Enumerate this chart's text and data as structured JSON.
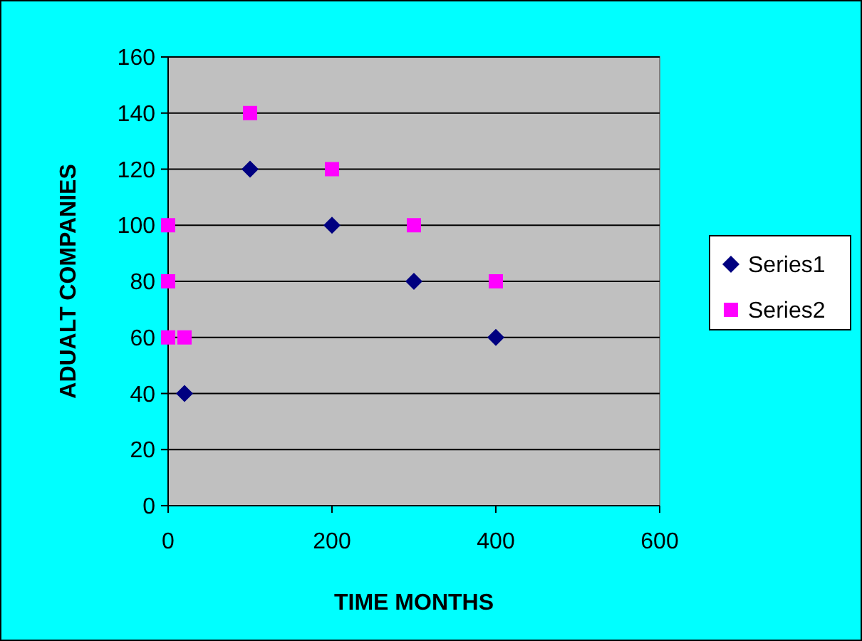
{
  "chart_data": {
    "type": "scatter",
    "xlabel": "TIME MONTHS",
    "ylabel": "ADUALT COMPANIES",
    "xlim": [
      0,
      600
    ],
    "xticks": [
      0,
      200,
      400,
      600
    ],
    "ylim": [
      0,
      160
    ],
    "yticks": [
      0,
      20,
      40,
      60,
      80,
      100,
      120,
      140,
      160
    ],
    "grid": "y",
    "legend": "right",
    "series": [
      {
        "name": "Series1",
        "color": "#000080",
        "marker": "diamond",
        "x": [
          20,
          100,
          200,
          300,
          400
        ],
        "values": [
          40,
          120,
          100,
          80,
          60
        ]
      },
      {
        "name": "Series2",
        "color": "#ff00ff",
        "marker": "square",
        "x": [
          0,
          0,
          0,
          20,
          100,
          200,
          300,
          400
        ],
        "values": [
          100,
          80,
          60,
          60,
          140,
          120,
          100,
          80
        ]
      }
    ]
  }
}
